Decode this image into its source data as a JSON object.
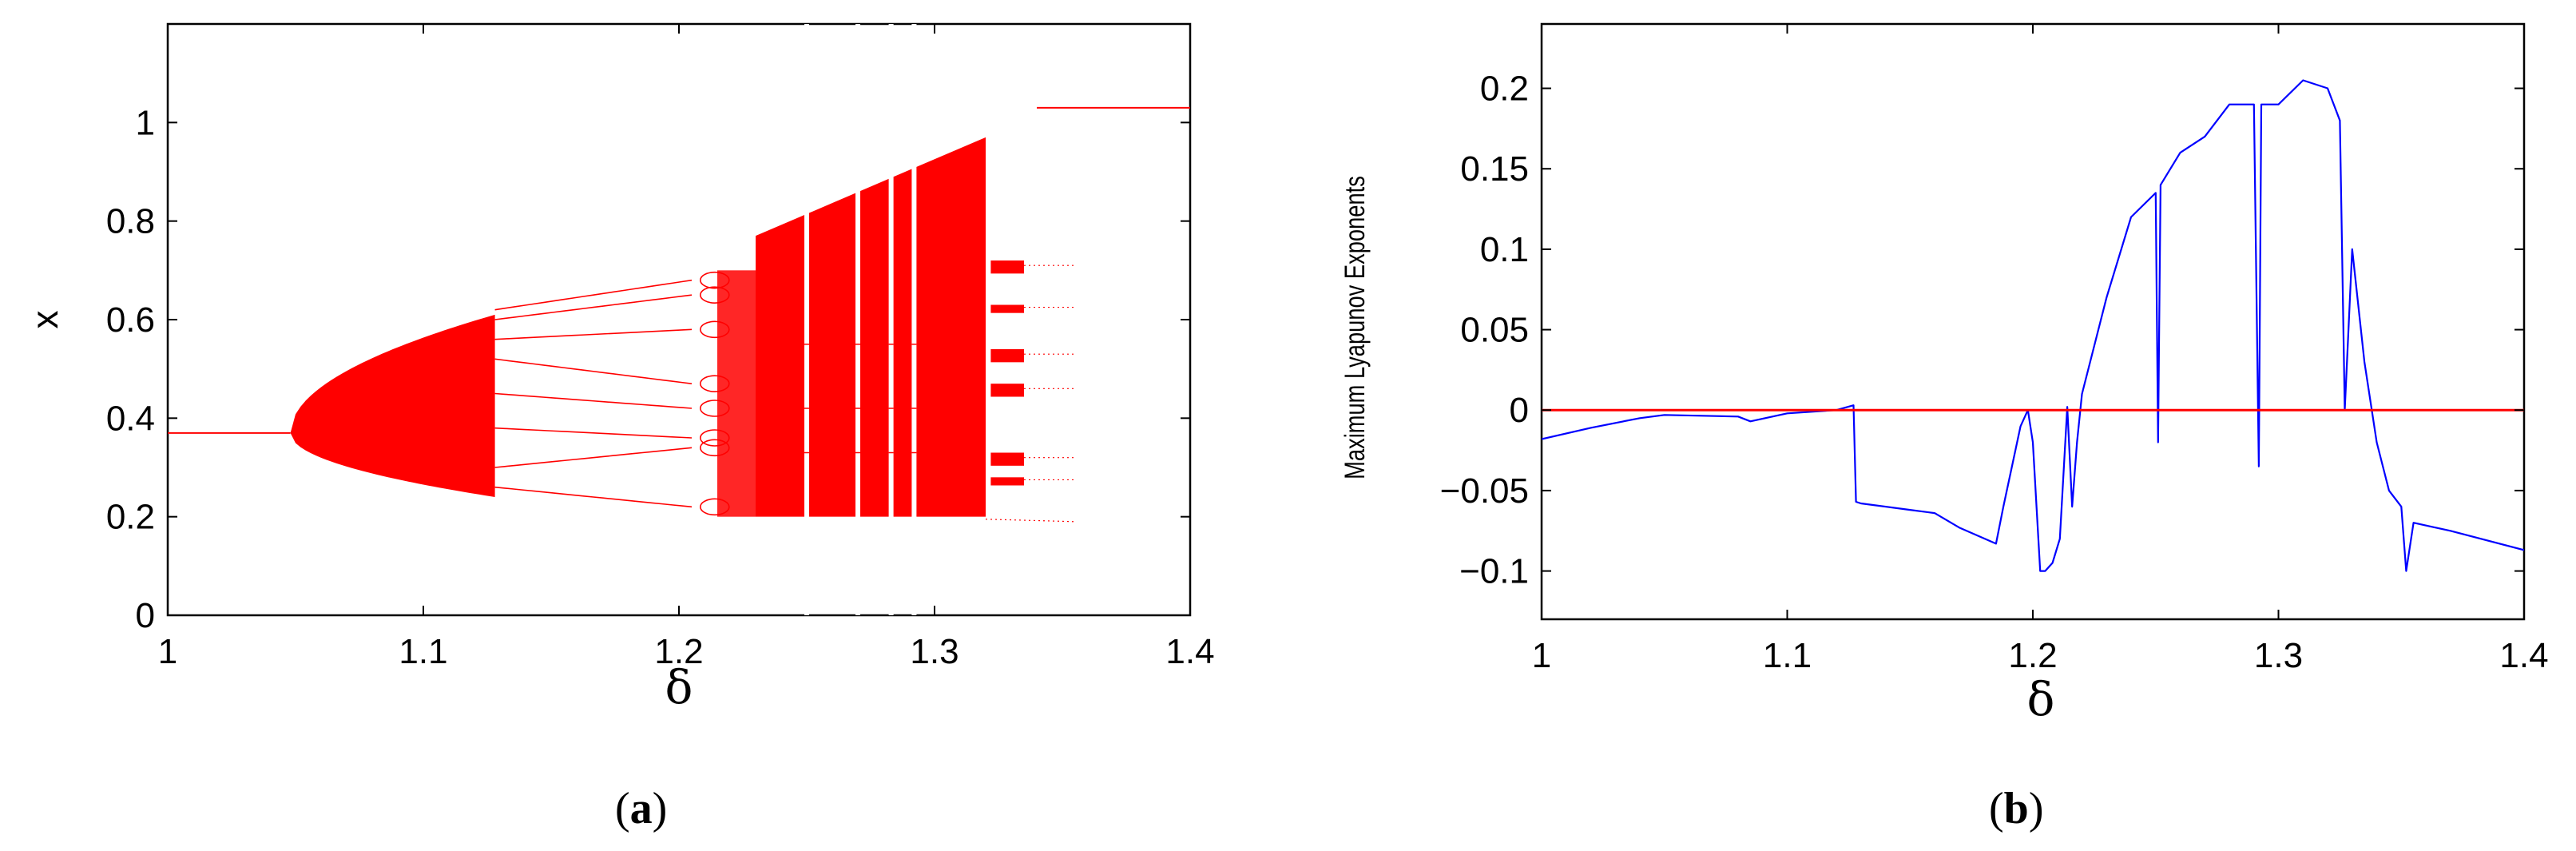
{
  "chart_data": [
    {
      "type": "scatter",
      "panel": "(a)",
      "caption_open": "(",
      "caption_letter": "a",
      "caption_close": ")",
      "xlabel": "δ",
      "ylabel": "x",
      "xlim": [
        1,
        1.4
      ],
      "ylim": [
        0,
        1.2
      ],
      "xticks": [
        "1",
        "1.1",
        "1.2",
        "1.3",
        "1.4"
      ],
      "xtick_values": [
        1,
        1.1,
        1.2,
        1.3,
        1.4
      ],
      "yticks": [
        "0",
        "0.2",
        "0.4",
        "0.6",
        "0.8",
        "1"
      ],
      "ytick_values": [
        0,
        0.2,
        0.4,
        0.6,
        0.8,
        1
      ],
      "grid": false,
      "color": "#ff0000",
      "series": [
        {
          "values": [
            {
              "x": 1.0,
              "y": 0.37
            },
            {
              "x": 1.048,
              "y": 0.37
            },
            {
              "x": 1.06,
              "y": 0.47
            },
            {
              "x": 1.08,
              "y": 0.53
            },
            {
              "x": 1.1,
              "y": 0.57
            },
            {
              "x": 1.128,
              "y": 0.61
            },
            {
              "x": 1.06,
              "y": 0.29
            },
            {
              "x": 1.08,
              "y": 0.265
            },
            {
              "x": 1.1,
              "y": 0.25
            },
            {
              "x": 1.128,
              "y": 0.24
            },
            {
              "x": 1.13,
              "y": 0.62
            },
            {
              "x": 1.2,
              "y": 0.68
            },
            {
              "x": 1.13,
              "y": 0.26
            },
            {
              "x": 1.2,
              "y": 0.22
            },
            {
              "x": 1.23,
              "y": 0.77
            },
            {
              "x": 1.32,
              "y": 0.97
            },
            {
              "x": 1.23,
              "y": 0.2
            },
            {
              "x": 1.32,
              "y": 0.2
            },
            {
              "x": 1.34,
              "y": 1.03
            },
            {
              "x": 1.4,
              "y": 1.03
            }
          ]
        }
      ]
    },
    {
      "type": "line",
      "panel": "(b)",
      "caption_open": "(",
      "caption_letter": "b",
      "caption_close": ")",
      "xlabel": "δ",
      "ylabel": "Maximum Lyapunov Exponents",
      "xlim": [
        1,
        1.4
      ],
      "ylim": [
        -0.13,
        0.24
      ],
      "xticks": [
        "1",
        "1.1",
        "1.2",
        "1.3",
        "1.4"
      ],
      "xtick_values": [
        1,
        1.1,
        1.2,
        1.3,
        1.4
      ],
      "yticks": [
        "−0.1",
        "−0.05",
        "0",
        "0.05",
        "0.1",
        "0.15",
        "0.2"
      ],
      "ytick_values": [
        -0.1,
        -0.05,
        0,
        0.05,
        0.1,
        0.15,
        0.2
      ],
      "grid": false,
      "series": [
        {
          "color": "#0000ff",
          "x": [
            1.0,
            1.02,
            1.04,
            1.05,
            1.08,
            1.085,
            1.1,
            1.12,
            1.127,
            1.128,
            1.13,
            1.15,
            1.16,
            1.17,
            1.185,
            1.188,
            1.195,
            1.198,
            1.2,
            1.203,
            1.205,
            1.208,
            1.211,
            1.214,
            1.216,
            1.218,
            1.22,
            1.23,
            1.24,
            1.25,
            1.251,
            1.252,
            1.26,
            1.27,
            1.28,
            1.29,
            1.292,
            1.293,
            1.3,
            1.31,
            1.32,
            1.325,
            1.327,
            1.33,
            1.335,
            1.34,
            1.345,
            1.35,
            1.352,
            1.355,
            1.37,
            1.4
          ],
          "y": [
            -0.018,
            -0.011,
            -0.005,
            -0.003,
            -0.004,
            -0.007,
            -0.002,
            0.0,
            0.003,
            -0.057,
            -0.058,
            -0.062,
            -0.064,
            -0.073,
            -0.083,
            -0.06,
            -0.01,
            0.0,
            -0.02,
            -0.1,
            -0.1,
            -0.095,
            -0.08,
            0.002,
            -0.06,
            -0.02,
            0.01,
            0.07,
            0.12,
            0.135,
            -0.02,
            0.14,
            0.16,
            0.17,
            0.19,
            0.19,
            -0.035,
            0.19,
            0.19,
            0.205,
            0.2,
            0.18,
            0.0,
            0.1,
            0.03,
            -0.02,
            -0.05,
            -0.06,
            -0.1,
            -0.07,
            -0.075,
            -0.087
          ]
        },
        {
          "color": "#ff0000",
          "x": [
            1.0,
            1.4
          ],
          "y": [
            0.0,
            0.0
          ]
        }
      ]
    }
  ]
}
